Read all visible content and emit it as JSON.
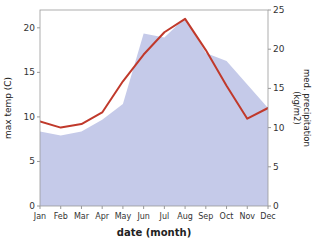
{
  "chart_data": {
    "type": "line",
    "xlabel": "date (month)",
    "ylabel": "max temp (C)",
    "y2label": "med. precipitation\n(kg/m2)",
    "categories": [
      "Jan",
      "Feb",
      "Mar",
      "Apr",
      "May",
      "Jun",
      "Jul",
      "Aug",
      "Sep",
      "Oct",
      "Nov",
      "Dec"
    ],
    "series": [
      {
        "type": "area",
        "axis": "y2",
        "color": "#c5cae9",
        "values": [
          9.5,
          9.0,
          9.5,
          11.0,
          13.0,
          22.0,
          21.5,
          24.0,
          19.5,
          18.5,
          15.5,
          12.5
        ]
      },
      {
        "type": "line",
        "color": "#c0392b",
        "values": [
          9.5,
          8.8,
          9.2,
          10.5,
          14.0,
          17.0,
          19.5,
          21.0,
          17.5,
          13.5,
          9.8,
          11.0
        ]
      }
    ],
    "ylim": [
      0,
      22
    ],
    "yticks": [
      0,
      5,
      10,
      15,
      20
    ],
    "y2lim": [
      0,
      25
    ],
    "y2ticks": [
      0,
      5,
      10,
      15,
      20,
      25
    ],
    "grid": false
  }
}
